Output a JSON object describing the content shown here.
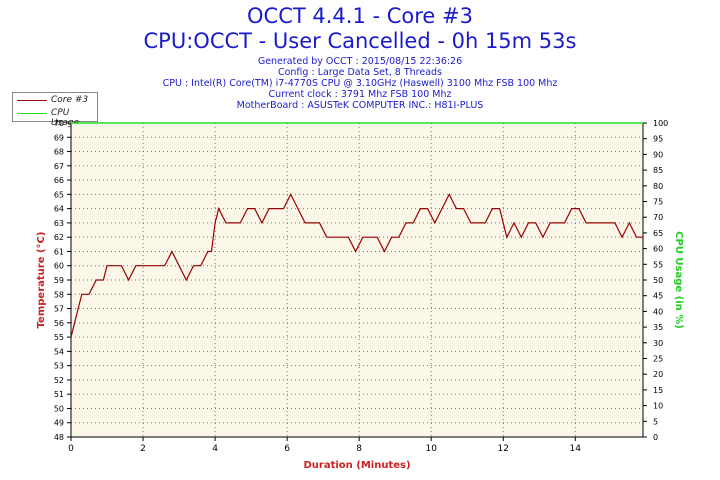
{
  "header": {
    "title_line1": "OCCT 4.4.1 - Core #3",
    "title_line2": "CPU:OCCT - User Cancelled - 0h 15m 53s",
    "info_lines": [
      "Generated by OCCT : 2015/08/15 22:36:26",
      "Config : Large Data Set, 8 Threads",
      "CPU : Intel(R) Core(TM) i7-4770S CPU @ 3.10GHz (Haswell) 3100 Mhz FSB 100 Mhz",
      "Current clock : 3791 Mhz FSB 100 Mhz",
      "MotherBoard : ASUSTeK COMPUTER INC.: H81I-PLUS"
    ]
  },
  "colors": {
    "temperature": "#990000",
    "cpu_usage": "#22dd22",
    "plot_bg": "#fbf7e8",
    "axis_left_label": "#cc2222",
    "axis_right_label": "#22cc22"
  },
  "chart_data": {
    "type": "line",
    "title": "OCCT 4.4.1 - Core #3",
    "xlabel": "Duration (Minutes)",
    "ylabel": "Temperature (°C)",
    "y2label": "CPU Usage (in %)",
    "xlim": [
      0,
      15.88
    ],
    "ylim": [
      48,
      70
    ],
    "y2lim": [
      0,
      100
    ],
    "x_ticks": [
      0,
      2,
      4,
      6,
      8,
      10,
      12,
      14
    ],
    "y_ticks": [
      48,
      49,
      50,
      51,
      52,
      53,
      54,
      55,
      56,
      57,
      58,
      59,
      60,
      61,
      62,
      63,
      64,
      65,
      66,
      67,
      68,
      69,
      70
    ],
    "y2_ticks": [
      0,
      5,
      10,
      15,
      20,
      25,
      30,
      35,
      40,
      45,
      50,
      55,
      60,
      65,
      70,
      75,
      80,
      85,
      90,
      95,
      100
    ],
    "grid": true,
    "legend_position": "top-left",
    "series": [
      {
        "name": "Core #3",
        "axis": "left",
        "x": [
          0,
          0.1,
          0.2,
          0.3,
          0.5,
          0.7,
          0.9,
          1.0,
          1.2,
          1.4,
          1.6,
          1.8,
          2.0,
          2.2,
          2.4,
          2.6,
          2.8,
          3.0,
          3.2,
          3.4,
          3.6,
          3.8,
          3.9,
          4.0,
          4.1,
          4.3,
          4.5,
          4.7,
          4.9,
          5.1,
          5.3,
          5.5,
          5.7,
          5.9,
          6.1,
          6.3,
          6.5,
          6.7,
          6.9,
          7.1,
          7.3,
          7.5,
          7.7,
          7.9,
          8.1,
          8.3,
          8.5,
          8.7,
          8.9,
          9.1,
          9.3,
          9.5,
          9.7,
          9.9,
          10.1,
          10.3,
          10.5,
          10.7,
          10.9,
          11.1,
          11.3,
          11.5,
          11.7,
          11.9,
          12.1,
          12.3,
          12.5,
          12.7,
          12.9,
          13.1,
          13.3,
          13.5,
          13.7,
          13.9,
          14.1,
          14.3,
          14.5,
          14.7,
          14.9,
          15.1,
          15.3,
          15.5,
          15.7,
          15.88
        ],
        "y": [
          55,
          56,
          57,
          58,
          58,
          59,
          59,
          60,
          60,
          60,
          59,
          60,
          60,
          60,
          60,
          60,
          61,
          60,
          59,
          60,
          60,
          61,
          61,
          63,
          64,
          63,
          63,
          63,
          64,
          64,
          63,
          64,
          64,
          64,
          65,
          64,
          63,
          63,
          63,
          62,
          62,
          62,
          62,
          61,
          62,
          62,
          62,
          61,
          62,
          62,
          63,
          63,
          64,
          64,
          63,
          64,
          65,
          64,
          64,
          63,
          63,
          63,
          64,
          64,
          62,
          63,
          62,
          63,
          63,
          62,
          63,
          63,
          63,
          64,
          64,
          63,
          63,
          63,
          63,
          63,
          62,
          63,
          62,
          62
        ]
      },
      {
        "name": "CPU Usage",
        "axis": "right",
        "x": [
          0,
          15.88
        ],
        "y": [
          100,
          100
        ]
      }
    ]
  }
}
